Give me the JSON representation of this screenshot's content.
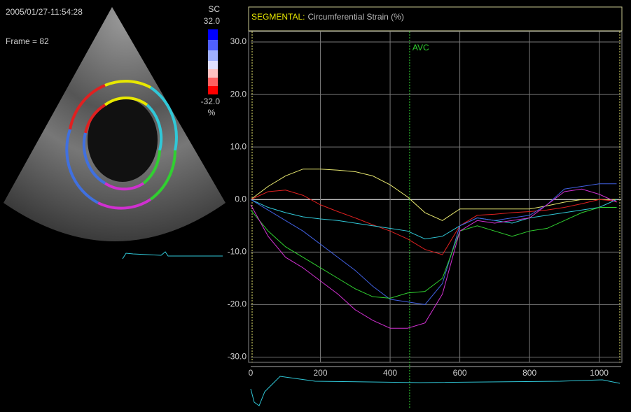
{
  "image_panel": {
    "timestamp": "2005/01/27-11:54:28",
    "frame": "Frame = 82",
    "scale_title": "SC",
    "scale_max": "32.0",
    "scale_min": "-32.0",
    "scale_unit": "%"
  },
  "chart_data": {
    "type": "line",
    "title": "SEGMENTAL:",
    "subtitle": "Circumferential Strain (%)",
    "x": [
      0,
      50,
      100,
      150,
      200,
      250,
      300,
      350,
      400,
      450,
      500,
      550,
      600,
      650,
      700,
      750,
      800,
      850,
      900,
      950,
      1000,
      1050
    ],
    "series": [
      {
        "color": "#e8e870",
        "values": [
          0,
          2.5,
          4.5,
          5.8,
          5.8,
          5.6,
          5.3,
          4.5,
          2.8,
          0.5,
          -2.5,
          -4,
          -1.8,
          -1.8,
          -1.8,
          -1.8,
          -1.8,
          -1.2,
          -0.5,
          0,
          0,
          0
        ]
      },
      {
        "color": "#e02020",
        "values": [
          0,
          1.5,
          1.8,
          0.8,
          -1,
          -2.3,
          -3.5,
          -4.8,
          -6,
          -7.5,
          -9.5,
          -10.5,
          -5,
          -3,
          -2.8,
          -2.5,
          -2.3,
          -2,
          -1.5,
          -0.8,
          0,
          -0.3
        ]
      },
      {
        "color": "#30c8d8",
        "values": [
          0,
          -1.5,
          -2.5,
          -3.3,
          -3.7,
          -4,
          -4.5,
          -5,
          -5.5,
          -6,
          -7.5,
          -7,
          -5,
          -3.5,
          -4,
          -4.5,
          -3.5,
          -3,
          -2.5,
          -2,
          -1.5,
          0
        ]
      },
      {
        "color": "#4060e0",
        "values": [
          0,
          -2,
          -4,
          -6,
          -8.5,
          -11,
          -13.5,
          -16.5,
          -19,
          -19.5,
          -20,
          -16,
          -5,
          -3.5,
          -4,
          -3.5,
          -3,
          -1,
          2,
          2.5,
          3,
          3
        ]
      },
      {
        "color": "#30d030",
        "values": [
          -2,
          -6,
          -9,
          -11,
          -13,
          -15,
          -17,
          -18.5,
          -18.8,
          -17.8,
          -17.5,
          -15,
          -6,
          -5,
          -6,
          -7,
          -6,
          -5.5,
          -4,
          -2.5,
          -1.5,
          -1.5
        ]
      },
      {
        "color": "#d030d0",
        "values": [
          -1,
          -7,
          -11,
          -13,
          -15.5,
          -18,
          -21,
          -23,
          -24.5,
          -24.5,
          -23.5,
          -18,
          -6,
          -4,
          -4.5,
          -4,
          -3.5,
          -1,
          1.5,
          2,
          1,
          -0.5
        ]
      }
    ],
    "xlim": [
      0,
      1063
    ],
    "xticks": [
      0,
      200,
      400,
      600,
      800,
      1000
    ],
    "ylim": [
      -31,
      32
    ],
    "yticks": [
      {
        "value": -30,
        "label": "-30.0"
      },
      {
        "value": -20,
        "label": "-20.0"
      },
      {
        "value": -10,
        "label": "-10.0"
      },
      {
        "value": 0,
        "label": "0.0"
      },
      {
        "value": 10,
        "label": "10.0"
      },
      {
        "value": 20,
        "label": "20.0"
      },
      {
        "value": 30,
        "label": "30.0"
      }
    ],
    "grid": true,
    "annotations": [
      {
        "text": "AVC",
        "x": 456
      }
    ]
  }
}
